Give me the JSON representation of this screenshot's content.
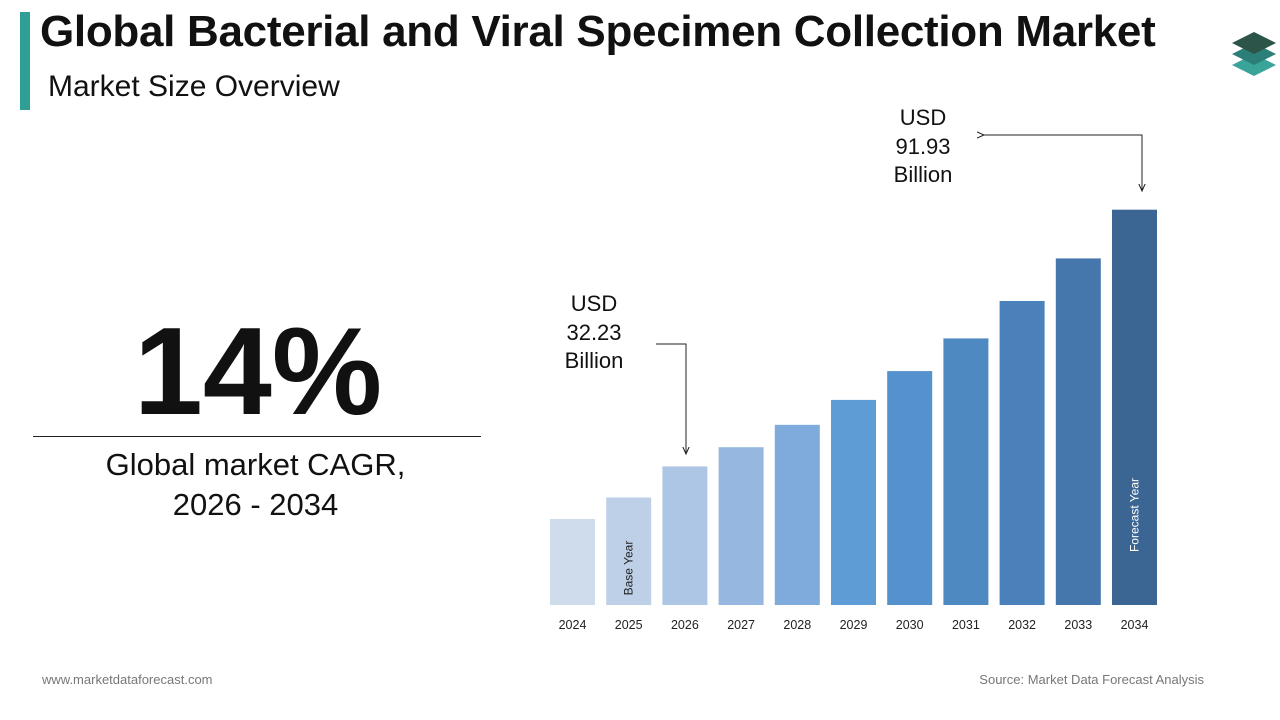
{
  "header": {
    "title": "Global Bacterial and Viral Specimen Collection Market",
    "subtitle": "Market Size Overview"
  },
  "logo": {
    "icon": "stacked-layers-icon"
  },
  "cagr": {
    "value": "14%",
    "label_line1": "Global market CAGR,",
    "label_line2": "2026 - 2034"
  },
  "callouts": {
    "start": {
      "line1": "USD",
      "line2": "32.23",
      "line3": "Billion"
    },
    "end": {
      "line1": "USD",
      "line2": "91.93",
      "line3": "Billion"
    }
  },
  "footer": {
    "website": "www.marketdataforecast.com",
    "source": "Source: Market Data Forecast Analysis"
  },
  "colors": {
    "accent": "#2f9e95",
    "bars": [
      "#cfdcec",
      "#bdd0e8",
      "#adc6e5",
      "#96b8e0",
      "#7eabdc",
      "#5e9cd6",
      "#5591cc",
      "#4f89c2",
      "#4a81ba",
      "#4577ad",
      "#3b6592"
    ]
  },
  "chart_data": {
    "type": "bar",
    "categories": [
      "2024",
      "2025",
      "2026",
      "2027",
      "2028",
      "2029",
      "2030",
      "2031",
      "2032",
      "2033",
      "2034"
    ],
    "values": [
      20,
      25,
      32.23,
      36.7,
      41.9,
      47.7,
      54.4,
      62.0,
      70.7,
      80.6,
      91.93
    ],
    "annotations": [
      {
        "category": "2025",
        "text": "Base Year",
        "color": "#222222"
      },
      {
        "category": "2034",
        "text": "Forecast Year",
        "color": "#ffffff"
      }
    ],
    "grid": false,
    "legend": "none"
  }
}
